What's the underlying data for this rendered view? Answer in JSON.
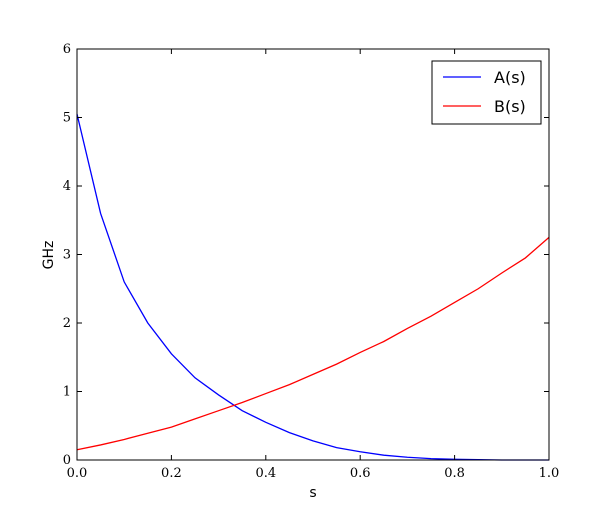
{
  "chart_data": {
    "type": "line",
    "xlabel": "s",
    "ylabel": "GHz",
    "xlim": [
      0.0,
      1.0
    ],
    "ylim": [
      0,
      6
    ],
    "xticks": [
      "0.0",
      "0.2",
      "0.4",
      "0.6",
      "0.8",
      "1.0"
    ],
    "yticks": [
      "0",
      "1",
      "2",
      "3",
      "4",
      "5",
      "6"
    ],
    "grid": false,
    "legend_position": "top-right",
    "series": [
      {
        "name": "A(s)",
        "color": "#0000ff",
        "x": [
          0.0,
          0.05,
          0.1,
          0.15,
          0.2,
          0.25,
          0.3,
          0.35,
          0.4,
          0.45,
          0.5,
          0.55,
          0.6,
          0.65,
          0.7,
          0.75,
          0.8,
          0.85,
          0.9,
          0.95,
          1.0
        ],
        "y": [
          5.05,
          3.6,
          2.6,
          2.0,
          1.55,
          1.2,
          0.95,
          0.72,
          0.55,
          0.4,
          0.28,
          0.18,
          0.12,
          0.07,
          0.04,
          0.02,
          0.01,
          0.005,
          0.0,
          0.0,
          0.0
        ]
      },
      {
        "name": "B(s)",
        "color": "#ff0000",
        "x": [
          0.0,
          0.05,
          0.1,
          0.15,
          0.2,
          0.25,
          0.3,
          0.35,
          0.4,
          0.45,
          0.5,
          0.55,
          0.6,
          0.65,
          0.7,
          0.75,
          0.8,
          0.85,
          0.9,
          0.95,
          1.0
        ],
        "y": [
          0.15,
          0.22,
          0.3,
          0.39,
          0.48,
          0.6,
          0.72,
          0.84,
          0.97,
          1.1,
          1.25,
          1.4,
          1.57,
          1.73,
          1.92,
          2.1,
          2.3,
          2.5,
          2.73,
          2.95,
          3.25
        ]
      }
    ]
  }
}
